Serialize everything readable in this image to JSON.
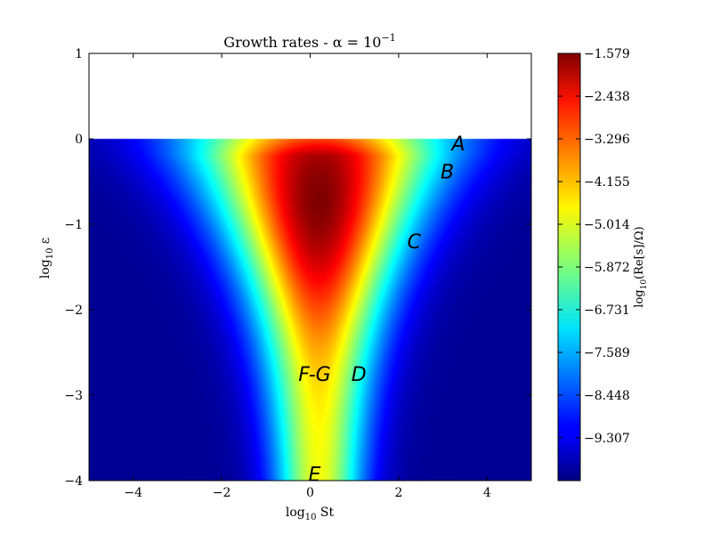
{
  "chart_data": {
    "type": "heatmap",
    "title": "Growth rates - α = 10",
    "title_exponent": "−1",
    "xlabel": "log",
    "xlabel_sub": "10",
    "xlabel_suffix": " St",
    "ylabel": "log",
    "ylabel_sub": "10",
    "ylabel_suffix": " ε",
    "xlim": [
      -5,
      5
    ],
    "ylim": [
      -4,
      1
    ],
    "x_ticks": [
      {
        "value": -4,
        "label": "−4"
      },
      {
        "value": -2,
        "label": "−2"
      },
      {
        "value": 0,
        "label": "0"
      },
      {
        "value": 2,
        "label": "2"
      },
      {
        "value": 4,
        "label": "4"
      }
    ],
    "y_ticks": [
      {
        "value": 1,
        "label": "1"
      },
      {
        "value": 0,
        "label": "0"
      },
      {
        "value": -1,
        "label": "−1"
      },
      {
        "value": -2,
        "label": "−2"
      },
      {
        "value": -3,
        "label": "−3"
      },
      {
        "value": -4,
        "label": "−4"
      }
    ],
    "data_ymax": 0,
    "colormap": "jet",
    "colorbar": {
      "label": "log",
      "label_sub": "10",
      "label_suffix": "(Re[s]/Ω)",
      "range": [
        -10.166,
        -1.579
      ],
      "ticks": [
        {
          "value": -1.579,
          "label": "−1.579"
        },
        {
          "value": -2.438,
          "label": "−2.438"
        },
        {
          "value": -3.296,
          "label": "−3.296"
        },
        {
          "value": -4.155,
          "label": "−4.155"
        },
        {
          "value": -5.014,
          "label": "−5.014"
        },
        {
          "value": -5.872,
          "label": "−5.872"
        },
        {
          "value": -6.731,
          "label": "−6.731"
        },
        {
          "value": -7.589,
          "label": "−7.589"
        },
        {
          "value": -8.448,
          "label": "−8.448"
        },
        {
          "value": -9.307,
          "label": "−9.307"
        }
      ]
    },
    "annotations": [
      {
        "text": "A",
        "x": 3.35,
        "y": -0.05
      },
      {
        "text": "B",
        "x": 3.1,
        "y": -0.38
      },
      {
        "text": "C",
        "x": 2.35,
        "y": -1.2
      },
      {
        "text": "F-G",
        "x": 0.1,
        "y": -2.75
      },
      {
        "text": "D",
        "x": 1.1,
        "y": -2.75
      },
      {
        "text": "E",
        "x": 0.1,
        "y": -3.92
      }
    ]
  }
}
